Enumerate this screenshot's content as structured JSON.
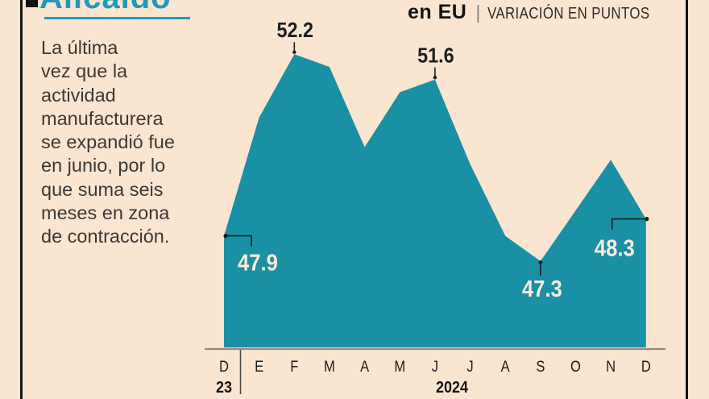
{
  "title": {
    "text": "Alicaído"
  },
  "header": {
    "region": "en EU",
    "separator": "|",
    "units": "VARIACIÓN EN PUNTOS"
  },
  "sidebar_text": "La última\nvez que la\nactividad\nmanufacturera\nse expandió fue\nen junio, por lo\nque suma seis\nmeses en zona\nde contracción.",
  "colors": {
    "background": "#fae5d1",
    "area_teal": "#1a90a5",
    "title_accent": "#2199ba",
    "callout_dark": "#1d1d1d",
    "label_cream": "#f8ecd9",
    "axis_line": "#96897b",
    "month_text": "#1c1c1c",
    "frame_line": "#161616"
  },
  "chart_data": {
    "type": "area",
    "title": "Alicaído",
    "subtitle": "en EU | VARIACIÓN EN PUNTOS",
    "categories": [
      "D",
      "E",
      "F",
      "M",
      "A",
      "M",
      "J",
      "J",
      "A",
      "S",
      "O",
      "N",
      "D"
    ],
    "values": [
      47.9,
      50.7,
      52.2,
      51.9,
      50.0,
      51.3,
      51.6,
      49.6,
      47.9,
      47.3,
      48.5,
      49.7,
      48.3
    ],
    "x_axis": {
      "year_left": "23",
      "year_right": "2024"
    },
    "annotations": [
      {
        "index": 0,
        "label": "47.9",
        "placement": "elbow-right",
        "color": "cream"
      },
      {
        "index": 2,
        "label": "52.2",
        "placement": "tick-above",
        "color": "dark"
      },
      {
        "index": 6,
        "label": "51.6",
        "placement": "tick-above",
        "color": "dark"
      },
      {
        "index": 9,
        "label": "47.3",
        "placement": "tick-below",
        "color": "cream"
      },
      {
        "index": 12,
        "label": "48.3",
        "placement": "elbow-left",
        "color": "cream"
      }
    ],
    "grid": false,
    "legend": "none",
    "ylim": [
      45.3,
      53.6
    ]
  }
}
